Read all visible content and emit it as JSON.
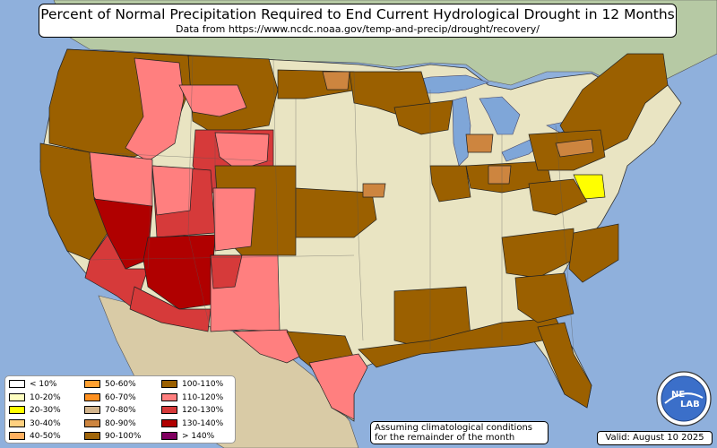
{
  "title": "Percent of Normal Precipitation Required to End Current Hydrological Drought in 12 Months",
  "subtitle": "Data from https://www.ncdc.noaa.gov/temp-and-precip/drought/recovery/",
  "note_line1": "Assuming climatological conditions",
  "note_line2": "for the remainder of the month",
  "valid": "Valid: August 10 2025",
  "logo_text_top": "NE",
  "logo_text_bottom": "LAB",
  "colors": {
    "ocean": "#8fb0dc",
    "land": "#e9e4c2",
    "canada": "#b6c9a4",
    "mexico": "#d9cba6",
    "lake": "#7fa6d8"
  },
  "legend": [
    {
      "label": "< 10%",
      "color": "#ffffff"
    },
    {
      "label": "10-20%",
      "color": "#ffffc0"
    },
    {
      "label": "20-30%",
      "color": "#ffff00"
    },
    {
      "label": "30-40%",
      "color": "#ffd080"
    },
    {
      "label": "40-50%",
      "color": "#ffb060"
    },
    {
      "label": "50-60%",
      "color": "#ffa030"
    },
    {
      "label": "60-70%",
      "color": "#ff9020"
    },
    {
      "label": "70-80%",
      "color": "#d2b48c"
    },
    {
      "label": "80-90%",
      "color": "#cd853f"
    },
    {
      "label": "90-100%",
      "color": "#a0650a"
    },
    {
      "label": "100-110%",
      "color": "#9b6000"
    },
    {
      "label": "110-120%",
      "color": "#ff7f7f"
    },
    {
      "label": "120-130%",
      "color": "#d63a3a"
    },
    {
      "label": "130-140%",
      "color": "#b00000"
    },
    {
      "label": "> 140%",
      "color": "#800060"
    }
  ],
  "regions": [
    {
      "name": "pacific-northwest",
      "category": "100-110%",
      "color": "#9b6000"
    },
    {
      "name": "northern-rockies",
      "category": "100-110%",
      "color": "#9b6000"
    },
    {
      "name": "california",
      "category": "100-110%",
      "color": "#9b6000"
    },
    {
      "name": "southern-california",
      "category": "120-130%",
      "color": "#d63a3a"
    },
    {
      "name": "nevada",
      "category": "130-140%",
      "color": "#b00000"
    },
    {
      "name": "arizona",
      "category": "130-140%",
      "color": "#b00000"
    },
    {
      "name": "utah-colorado",
      "category": "120-130%",
      "color": "#d63a3a"
    },
    {
      "name": "idaho-wyoming",
      "category": "110-120%",
      "color": "#ff7f7f"
    },
    {
      "name": "new-mexico",
      "category": "110-120%",
      "color": "#ff7f7f"
    },
    {
      "name": "west-texas",
      "category": "110-120%",
      "color": "#ff7f7f"
    },
    {
      "name": "south-texas",
      "category": "110-120%",
      "color": "#ff7f7f"
    },
    {
      "name": "plains",
      "category": "100-110%",
      "color": "#9b6000"
    },
    {
      "name": "upper-midwest",
      "category": "100-110%",
      "color": "#9b6000"
    },
    {
      "name": "gulf-coast",
      "category": "100-110%",
      "color": "#9b6000"
    },
    {
      "name": "southeast",
      "category": "100-110%",
      "color": "#9b6000"
    },
    {
      "name": "northeast",
      "category": "100-110%",
      "color": "#9b6000"
    },
    {
      "name": "mid-atlantic",
      "category": "20-30%",
      "color": "#ffff00"
    },
    {
      "name": "ohio-valley",
      "category": "80-90%",
      "color": "#cd853f"
    }
  ]
}
